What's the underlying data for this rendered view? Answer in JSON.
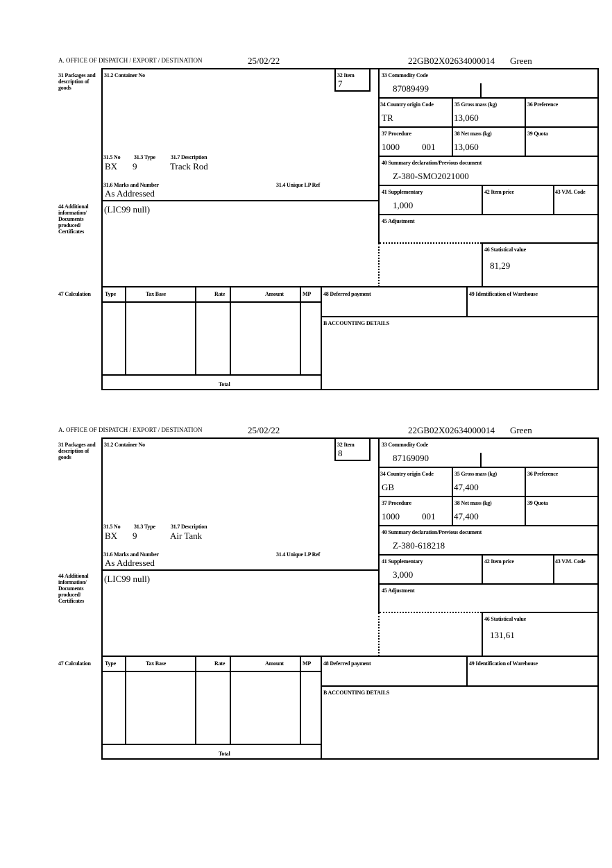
{
  "labels": {
    "office": "A.  OFFICE OF DISPATCH / EXPORT / DESTINATION",
    "box31": "31 Packages and description of goods",
    "box31_2": "31.2 Container No",
    "box32": "32 Item",
    "box31_5": "31.5 No",
    "box31_3": "31.3 Type",
    "box31_7": "31.7 Description",
    "box31_6": "31.6 Marks and Number",
    "box31_4": "31.4 Unique LP Ref",
    "box33": "33 Commodity Code",
    "box34": "34 Country origin Code",
    "box35": "35 Gross mass (kg)",
    "box36": "36 Preference",
    "box37": "37 Procedure",
    "box38": "38 Net mass (kg)",
    "box39": "39 Quota",
    "box40": "40 Summary declaration/Previous document",
    "box41": "41 Supplementary",
    "box42": "42 Item price",
    "box43": "43 V.M. Code",
    "box44": "44 Additional information/ Documents produced/ Certificates",
    "box45": "45 Adjustment",
    "box46": "46 Statistical value",
    "box47": "47 Calculation",
    "calc_type": "Type",
    "calc_taxbase": "Tax Base",
    "calc_rate": "Rate",
    "calc_amount": "Amount",
    "calc_mp": "MP",
    "calc_total": "Total",
    "box48": "48 Deferred payment",
    "box49": "49 Identification of Warehouse",
    "boxB": "B ACCOUNTING DETAILS"
  },
  "forms": [
    {
      "date": "25/02/22",
      "reference": "22GB02X02634000014",
      "route": "Green",
      "item": "7",
      "package_type": "BX",
      "package_no": "9",
      "description": "Track Rod",
      "marks": "As Addressed",
      "commodity_code": "87089499",
      "country_origin": "TR",
      "gross_mass": "13,060",
      "procedure": "1000",
      "procedure_add": "001",
      "net_mass": "13,060",
      "previous_document": "Z-380-SMO2021000",
      "supplementary": "1,000",
      "additional_info": "(LIC99 null)",
      "statistical_value": "81,29"
    },
    {
      "date": "25/02/22",
      "reference": "22GB02X02634000014",
      "route": "Green",
      "item": "8",
      "package_type": "BX",
      "package_no": "9",
      "description": "Air Tank",
      "marks": "As Addressed",
      "commodity_code": "87169090",
      "country_origin": "GB",
      "gross_mass": "47,400",
      "procedure": "1000",
      "procedure_add": "001",
      "net_mass": "47,400",
      "previous_document": "Z-380-618218",
      "supplementary": "3,000",
      "additional_info": "(LIC99 null)",
      "statistical_value": "131,61"
    }
  ]
}
